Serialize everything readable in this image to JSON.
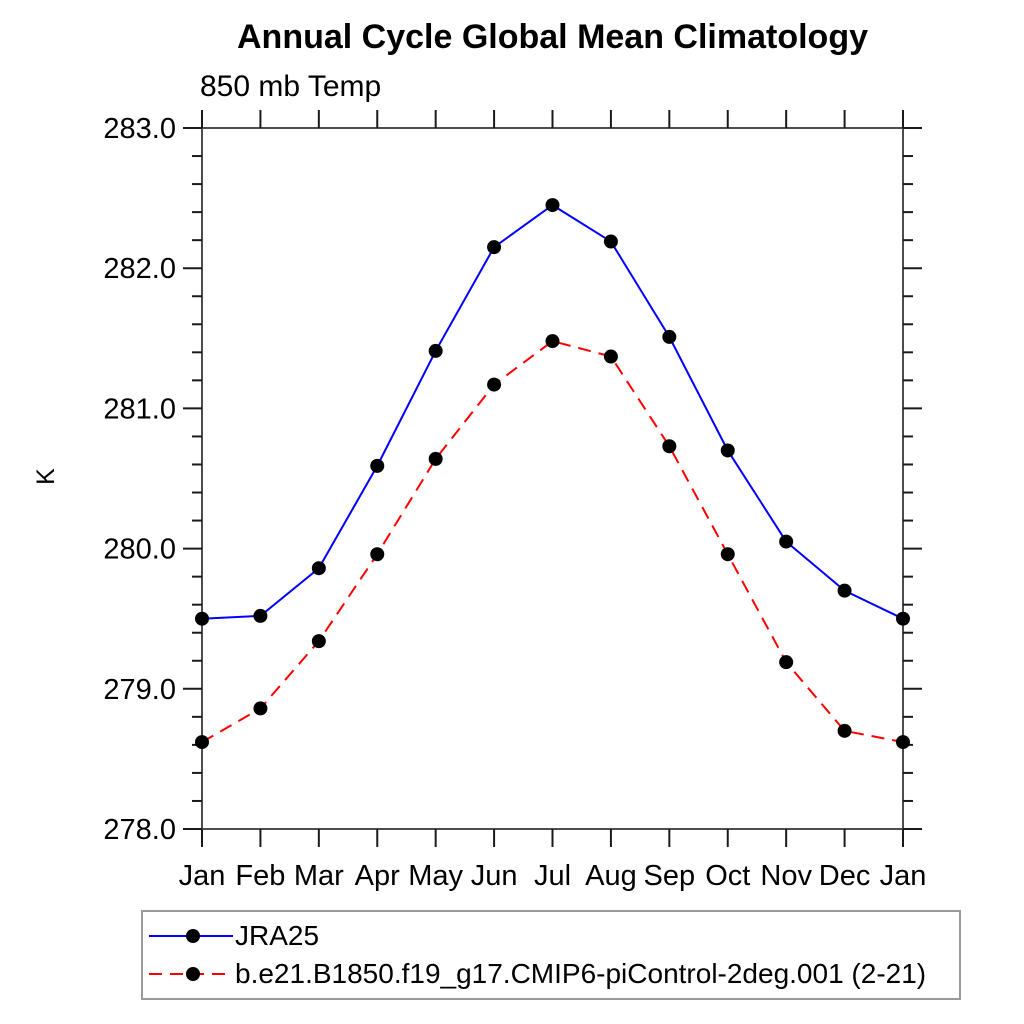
{
  "chart_data": {
    "type": "line",
    "title": "Annual Cycle Global Mean Climatology",
    "subtitle": "850 mb Temp",
    "ylabel": "K",
    "categories": [
      "Jan",
      "Feb",
      "Mar",
      "Apr",
      "May",
      "Jun",
      "Jul",
      "Aug",
      "Sep",
      "Oct",
      "Nov",
      "Dec",
      "Jan"
    ],
    "ylim": [
      278.0,
      283.0
    ],
    "y_major_step": 1.0,
    "y_minor_step": 0.2,
    "y_tick_labels": [
      "278.0",
      "279.0",
      "280.0",
      "281.0",
      "282.0",
      "283.0"
    ],
    "grid": "off",
    "legend_position": "bottom-left",
    "series": [
      {
        "name": "JRA25",
        "line_style": "solid",
        "line_color": "#0000ff",
        "marker": "filled-circle",
        "marker_color": "#000000",
        "values": [
          279.5,
          279.52,
          279.86,
          280.59,
          281.41,
          282.15,
          282.45,
          282.19,
          281.51,
          280.7,
          280.05,
          279.7,
          279.5
        ]
      },
      {
        "name": "b.e21.B1850.f19_g17.CMIP6-piControl-2deg.001 (2-21)",
        "line_style": "dashed",
        "line_color": "#ff0000",
        "marker": "filled-circle",
        "marker_color": "#000000",
        "values": [
          278.62,
          278.86,
          279.34,
          279.96,
          280.64,
          281.17,
          281.48,
          281.37,
          280.73,
          279.96,
          279.19,
          278.7,
          278.62
        ]
      }
    ],
    "axis_color": "#4d4d4d",
    "tick_color": "#1a1a1a"
  }
}
